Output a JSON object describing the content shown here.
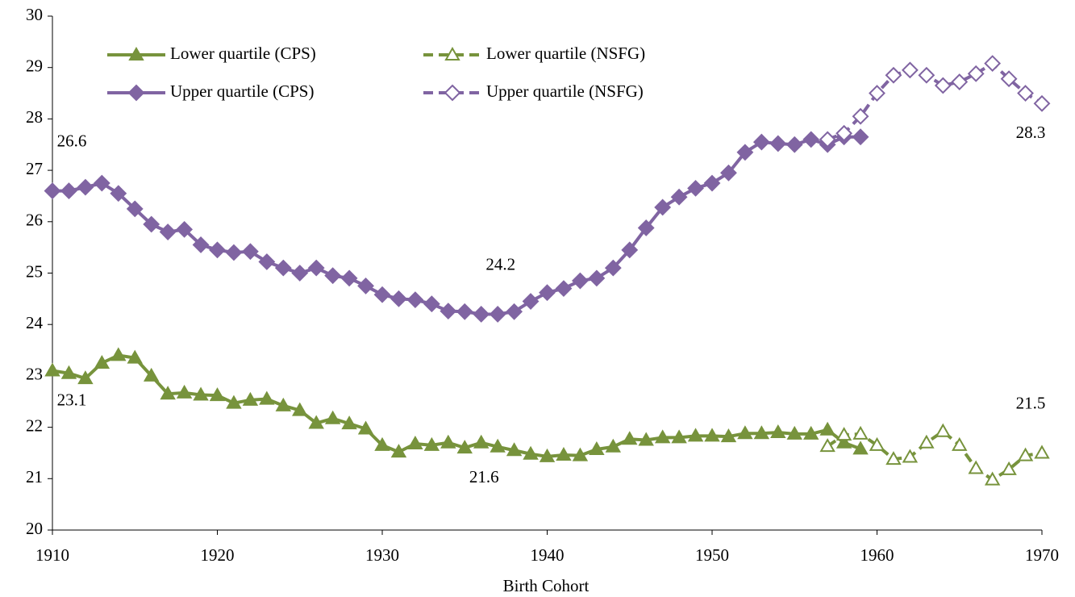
{
  "chart_data": {
    "type": "line",
    "x_label": "Birth Cohort",
    "xlim": [
      1910,
      1970
    ],
    "xticks": [
      1910,
      1920,
      1930,
      1940,
      1950,
      1960,
      1970
    ],
    "ylim": [
      20,
      30
    ],
    "yticks": [
      20,
      21,
      22,
      23,
      24,
      25,
      26,
      27,
      28,
      29,
      30
    ],
    "grid": false,
    "legend": "top-left",
    "series": [
      {
        "name": "Lower quartile (CPS)",
        "color": "#77933c",
        "marker": "triangle",
        "filled": true,
        "dashed": false,
        "x": [
          1910,
          1911,
          1912,
          1913,
          1914,
          1915,
          1916,
          1917,
          1918,
          1919,
          1920,
          1921,
          1922,
          1923,
          1924,
          1925,
          1926,
          1927,
          1928,
          1929,
          1930,
          1931,
          1932,
          1933,
          1934,
          1935,
          1936,
          1937,
          1938,
          1939,
          1940,
          1941,
          1942,
          1943,
          1944,
          1945,
          1946,
          1947,
          1948,
          1949,
          1950,
          1951,
          1952,
          1953,
          1954,
          1955,
          1956,
          1957,
          1958,
          1959
        ],
        "values": [
          23.1,
          23.05,
          22.95,
          23.25,
          23.4,
          23.35,
          23.0,
          22.65,
          22.67,
          22.63,
          22.62,
          22.47,
          22.53,
          22.55,
          22.42,
          22.33,
          22.08,
          22.17,
          22.07,
          21.97,
          21.65,
          21.52,
          21.68,
          21.65,
          21.7,
          21.6,
          21.7,
          21.62,
          21.55,
          21.48,
          21.43,
          21.46,
          21.45,
          21.57,
          21.62,
          21.77,
          21.75,
          21.8,
          21.8,
          21.83,
          21.83,
          21.82,
          21.88,
          21.88,
          21.9,
          21.87,
          21.87,
          21.95,
          21.7,
          21.58
        ]
      },
      {
        "name": "Lower quartile (NSFG)",
        "color": "#77933c",
        "marker": "triangle",
        "filled": false,
        "dashed": true,
        "x": [
          1957,
          1958,
          1959,
          1960,
          1961,
          1962,
          1963,
          1964,
          1965,
          1966,
          1967,
          1968,
          1969,
          1970
        ],
        "values": [
          21.63,
          21.85,
          21.87,
          21.65,
          21.38,
          21.42,
          21.7,
          21.92,
          21.65,
          21.2,
          20.98,
          21.18,
          21.45,
          21.5
        ]
      },
      {
        "name": "Upper quartile (CPS)",
        "color": "#8064a2",
        "marker": "diamond",
        "filled": true,
        "dashed": false,
        "x": [
          1910,
          1911,
          1912,
          1913,
          1914,
          1915,
          1916,
          1917,
          1918,
          1919,
          1920,
          1921,
          1922,
          1923,
          1924,
          1925,
          1926,
          1927,
          1928,
          1929,
          1930,
          1931,
          1932,
          1933,
          1934,
          1935,
          1936,
          1937,
          1938,
          1939,
          1940,
          1941,
          1942,
          1943,
          1944,
          1945,
          1946,
          1947,
          1948,
          1949,
          1950,
          1951,
          1952,
          1953,
          1954,
          1955,
          1956,
          1957,
          1958,
          1959
        ],
        "values": [
          26.6,
          26.6,
          26.67,
          26.75,
          26.55,
          26.25,
          25.95,
          25.8,
          25.85,
          25.55,
          25.45,
          25.4,
          25.42,
          25.22,
          25.1,
          25.0,
          25.1,
          24.95,
          24.9,
          24.75,
          24.58,
          24.5,
          24.48,
          24.4,
          24.26,
          24.25,
          24.2,
          24.2,
          24.25,
          24.45,
          24.62,
          24.7,
          24.85,
          24.9,
          25.1,
          25.45,
          25.88,
          26.28,
          26.48,
          26.65,
          26.75,
          26.95,
          27.35,
          27.55,
          27.52,
          27.5,
          27.6,
          27.5,
          27.65,
          27.65
        ]
      },
      {
        "name": "Upper quartile (NSFG)",
        "color": "#8064a2",
        "marker": "diamond",
        "filled": false,
        "dashed": true,
        "x": [
          1957,
          1958,
          1959,
          1960,
          1961,
          1962,
          1963,
          1964,
          1965,
          1966,
          1967,
          1968,
          1969,
          1970
        ],
        "values": [
          27.6,
          27.72,
          28.05,
          28.5,
          28.85,
          28.95,
          28.85,
          28.65,
          28.72,
          28.88,
          29.08,
          28.78,
          28.5,
          28.3
        ]
      }
    ],
    "annotations": [
      {
        "text": "26.6",
        "x": 1910,
        "y": 26.6,
        "position": "above"
      },
      {
        "text": "23.1",
        "x": 1910,
        "y": 23.1,
        "position": "below"
      },
      {
        "text": "24.2",
        "x": 1936,
        "y": 24.2,
        "position": "above"
      },
      {
        "text": "21.6",
        "x": 1935,
        "y": 21.6,
        "position": "below"
      },
      {
        "text": "28.3",
        "x": 1970,
        "y": 28.3,
        "position": "below"
      },
      {
        "text": "21.5",
        "x": 1970,
        "y": 21.5,
        "position": "above"
      }
    ]
  }
}
